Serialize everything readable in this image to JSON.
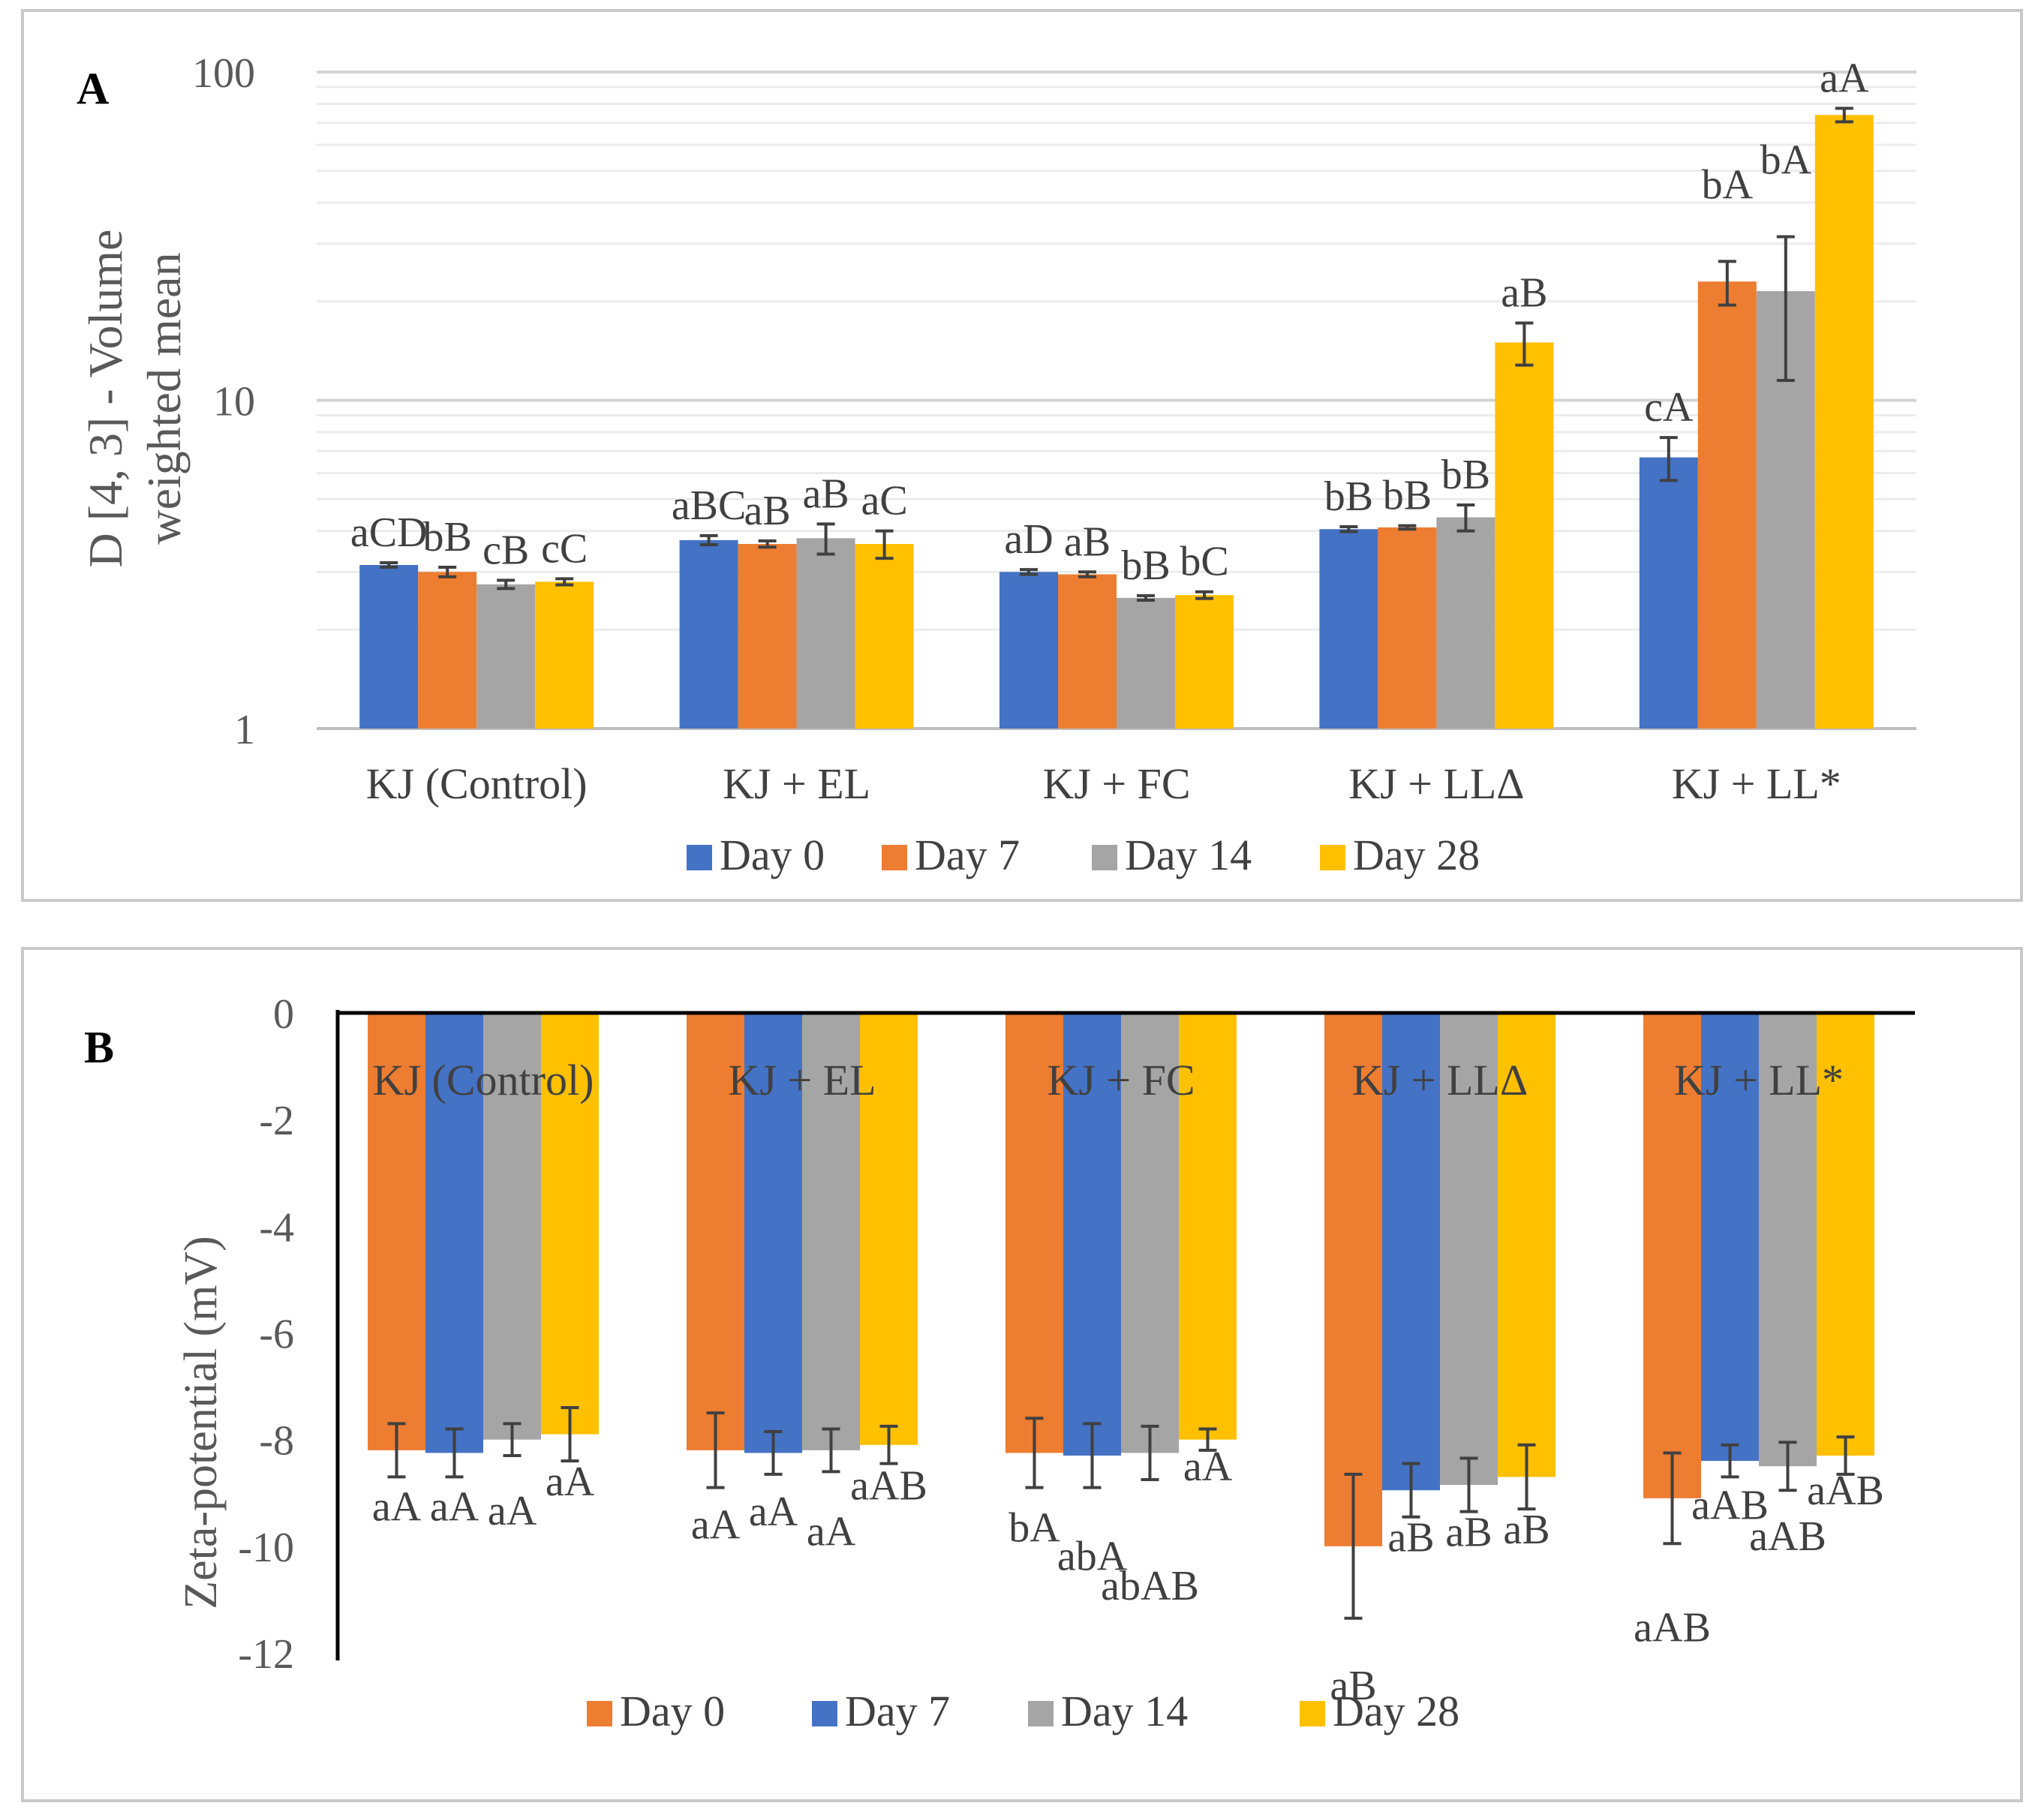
{
  "panels": [
    {
      "panel_label": "A",
      "chart_data": {
        "type": "bar",
        "scale": "log",
        "ylabel_lines": [
          "D [4, 3] - Volume",
          "weighted mean"
        ],
        "ylim": [
          1,
          100
        ],
        "yticks": [
          "1",
          "10",
          "100"
        ],
        "categories": [
          "KJ (Control)",
          "KJ + EL",
          "KJ + FC",
          "KJ + LLΔ",
          "KJ + LL*"
        ],
        "series": [
          {
            "name": "Day 0",
            "color": "#4472C4",
            "values": [
              3.15,
              3.75,
              3.0,
              4.05,
              6.7
            ],
            "errors": [
              0.05,
              0.12,
              0.05,
              0.07,
              1.0
            ],
            "labels": [
              "aCD",
              "aBC",
              "aD",
              "bB",
              "cA"
            ]
          },
          {
            "name": "Day 7",
            "color": "#ED7D31",
            "values": [
              3.0,
              3.65,
              2.95,
              4.1,
              23.0
            ],
            "errors": [
              0.1,
              0.08,
              0.05,
              0.05,
              3.5
            ],
            "labels": [
              "bB",
              "aB",
              "aB",
              "bB",
              "bA"
            ]
          },
          {
            "name": "Day 14",
            "color": "#A5A5A5",
            "values": [
              2.75,
              3.8,
              2.5,
              4.4,
              21.5
            ],
            "errors": [
              0.08,
              0.4,
              0.04,
              0.4,
              10.0
            ],
            "labels": [
              "cB",
              "aB",
              "bB",
              "bB",
              "bA"
            ]
          },
          {
            "name": "Day 28",
            "color": "#FFC000",
            "values": [
              2.8,
              3.65,
              2.55,
              15.0,
              74.0
            ],
            "errors": [
              0.06,
              0.35,
              0.06,
              2.2,
              3.5
            ],
            "labels": [
              "cC",
              "aC",
              "bC",
              "aB",
              "aA"
            ]
          }
        ],
        "legend": "bottom"
      }
    },
    {
      "panel_label": "B",
      "chart_data": {
        "type": "bar",
        "ylabel": "Zeta-potential (mV)",
        "ylim": [
          -12,
          0
        ],
        "yticks": [
          "0",
          "-2",
          "-4",
          "-6",
          "-8",
          "-10",
          "-12"
        ],
        "categories": [
          "KJ (Control)",
          "KJ + EL",
          "KJ + FC",
          "KJ + LLΔ",
          "KJ + LL*"
        ],
        "series": [
          {
            "name": "Day 0",
            "color": "#ED7D31",
            "values": [
              -8.2,
              -8.2,
              -8.25,
              -10.0,
              -9.1
            ],
            "errors": [
              0.5,
              0.7,
              0.65,
              1.35,
              0.85
            ],
            "labels": [
              "aA",
              "aA",
              "bA",
              "aB",
              "aAB"
            ]
          },
          {
            "name": "Day 7",
            "color": "#4472C4",
            "values": [
              -8.25,
              -8.25,
              -8.3,
              -8.95,
              -8.4
            ],
            "errors": [
              0.45,
              0.4,
              0.6,
              0.5,
              0.3
            ],
            "labels": [
              "aA",
              "aA",
              "abA",
              "aB",
              "aAB"
            ]
          },
          {
            "name": "Day 14",
            "color": "#A5A5A5",
            "values": [
              -8.0,
              -8.2,
              -8.25,
              -8.85,
              -8.5
            ],
            "errors": [
              0.3,
              0.4,
              0.5,
              0.5,
              0.45
            ],
            "labels": [
              "aA",
              "aA",
              "abAB",
              "aB",
              "aAB"
            ]
          },
          {
            "name": "Day 28",
            "color": "#FFC000",
            "values": [
              -7.9,
              -8.1,
              -8.0,
              -8.7,
              -8.3
            ],
            "errors": [
              0.5,
              0.35,
              0.2,
              0.6,
              0.35
            ],
            "labels": [
              "aA",
              "aAB",
              "aA",
              "aB",
              "aAB"
            ]
          }
        ],
        "legend": "bottom"
      }
    }
  ]
}
